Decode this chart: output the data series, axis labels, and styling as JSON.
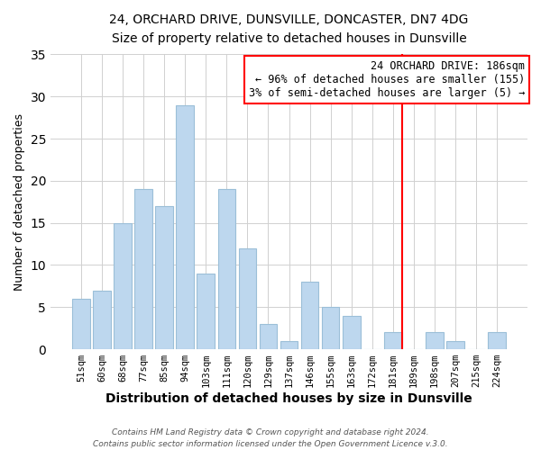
{
  "title1": "24, ORCHARD DRIVE, DUNSVILLE, DONCASTER, DN7 4DG",
  "title2": "Size of property relative to detached houses in Dunsville",
  "xlabel": "Distribution of detached houses by size in Dunsville",
  "ylabel": "Number of detached properties",
  "bar_labels": [
    "51sqm",
    "60sqm",
    "68sqm",
    "77sqm",
    "85sqm",
    "94sqm",
    "103sqm",
    "111sqm",
    "120sqm",
    "129sqm",
    "137sqm",
    "146sqm",
    "155sqm",
    "163sqm",
    "172sqm",
    "181sqm",
    "189sqm",
    "198sqm",
    "207sqm",
    "215sqm",
    "224sqm"
  ],
  "bar_values": [
    6,
    7,
    15,
    19,
    17,
    29,
    9,
    19,
    12,
    3,
    1,
    8,
    5,
    4,
    0,
    2,
    0,
    2,
    1,
    0,
    2
  ],
  "bar_color": "#bdd7ee",
  "bar_edge_color": "#9bbfd8",
  "vline_x_idx": 15,
  "vline_color": "red",
  "annotation_title": "24 ORCHARD DRIVE: 186sqm",
  "annotation_line1": "← 96% of detached houses are smaller (155)",
  "annotation_line2": "3% of semi-detached houses are larger (5) →",
  "annotation_box_color": "white",
  "annotation_box_edge": "red",
  "ylim": [
    0,
    35
  ],
  "yticks": [
    0,
    5,
    10,
    15,
    20,
    25,
    30,
    35
  ],
  "footer1": "Contains HM Land Registry data © Crown copyright and database right 2024.",
  "footer2": "Contains public sector information licensed under the Open Government Licence v.3.0."
}
